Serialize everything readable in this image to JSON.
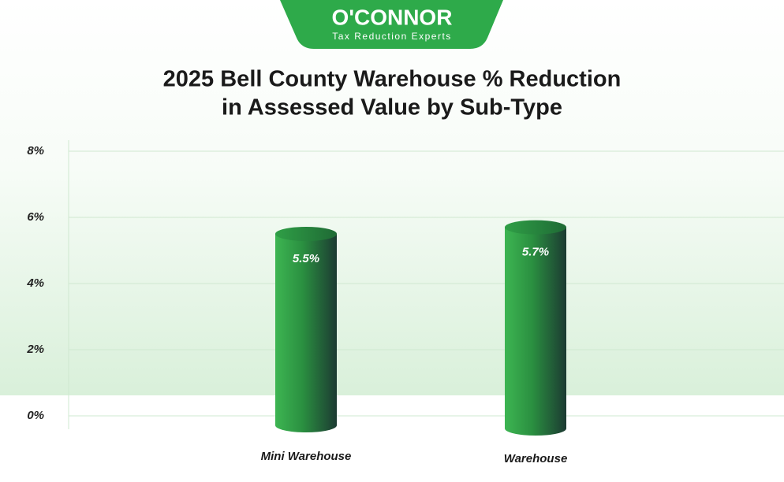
{
  "brand": {
    "name": "O'CONNOR",
    "tagline": "Tax Reduction Experts"
  },
  "chart_data": {
    "type": "bar",
    "title": [
      "2025 Bell County Warehouse % Reduction",
      "in Assessed Value by Sub-Type"
    ],
    "categories": [
      "Mini Warehouse",
      "Warehouse"
    ],
    "values": [
      5.5,
      5.7
    ],
    "value_labels": [
      "5.5%",
      "5.7%"
    ],
    "color": "#2e9a45",
    "ylim": [
      0,
      8
    ],
    "yticks": [
      {
        "value": 0,
        "label": "0%"
      },
      {
        "value": 2,
        "label": "2%"
      },
      {
        "value": 4,
        "label": "4%"
      },
      {
        "value": 6,
        "label": "6%"
      },
      {
        "value": 8,
        "label": "8%"
      }
    ],
    "grid": true
  }
}
